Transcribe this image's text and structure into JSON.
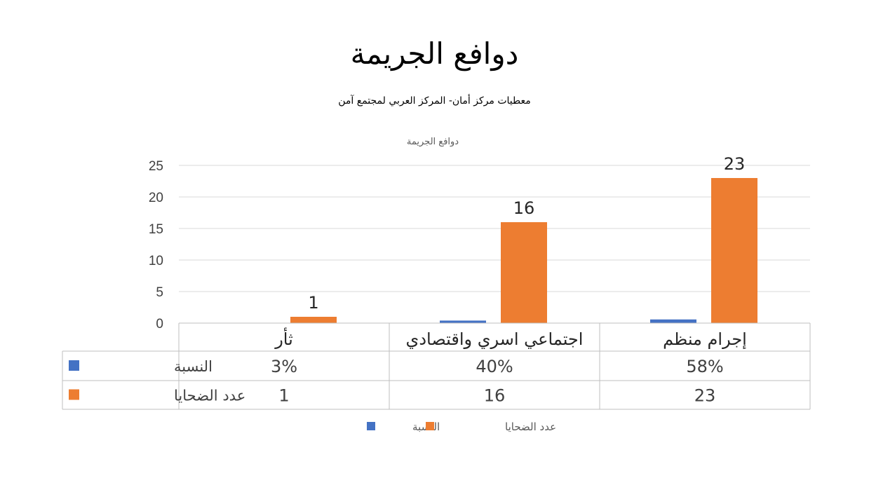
{
  "slide": {
    "title": "دوافع الجريمة",
    "subtitle": "معطيات مركز أمان- المركز العربي لمجتمع آمن"
  },
  "colors": {
    "series_blue": "#4472C4",
    "series_orange": "#ED7D31",
    "gridline": "#D9D9D9",
    "table_border": "#BFBFBF"
  },
  "chart_data": {
    "type": "bar",
    "title": "دوافع الجريمة",
    "categories": [
      "إجرام منظم",
      "اجتماعي اسري واقتصادي",
      "ثأر"
    ],
    "series": [
      {
        "name": "النسبة",
        "values": [
          0.58,
          0.4,
          0.03
        ],
        "display": [
          "58%",
          "40%",
          "3%"
        ],
        "color": "#4472C4"
      },
      {
        "name": "عدد الضحايا",
        "values": [
          23,
          16,
          1
        ],
        "display": [
          "23",
          "16",
          "1"
        ],
        "color": "#ED7D31"
      }
    ],
    "ylim": [
      0,
      25
    ],
    "yticks": [
      0,
      5,
      10,
      15,
      20,
      25
    ],
    "grid": true,
    "data_labels_series": "عدد الضحايا",
    "data_table": true,
    "legend_placement": "bottom",
    "legend_order": [
      "النسبة",
      "عدد الضحايا"
    ]
  }
}
